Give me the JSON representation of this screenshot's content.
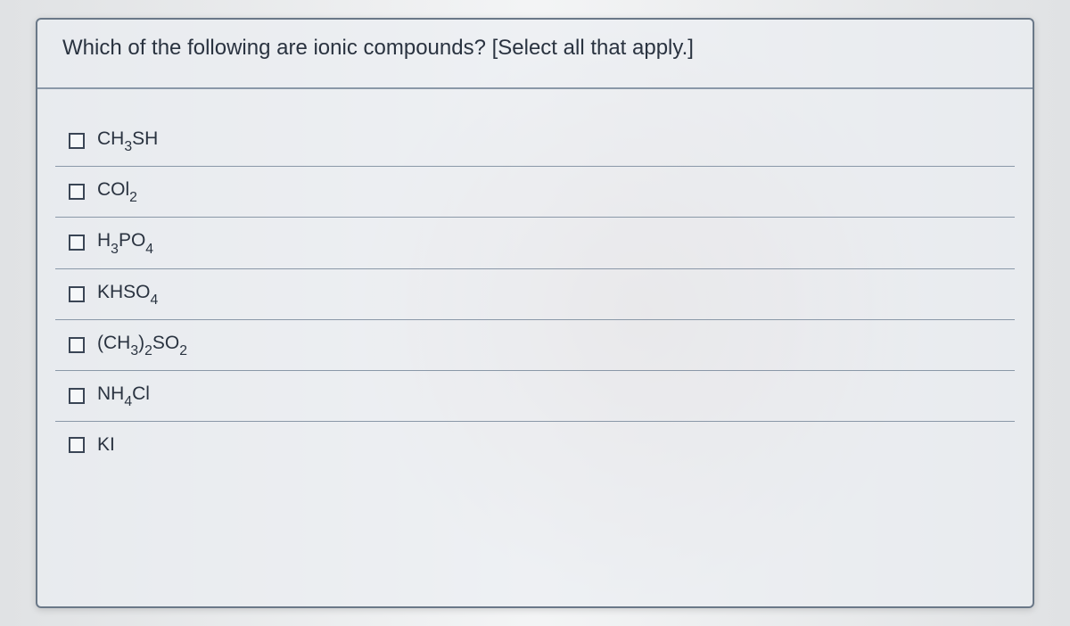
{
  "question": {
    "text": "Which of the following are ionic compounds? [Select all that apply.]"
  },
  "options": [
    {
      "formula_html": "CH<span class='sub'>3</span>SH",
      "checked": false
    },
    {
      "formula_html": "COl<span class='sub'>2</span>",
      "checked": false
    },
    {
      "formula_html": "H<span class='sub'>3</span>PO<span class='sub'>4</span>",
      "checked": false
    },
    {
      "formula_html": "KHSO<span class='sub'>4</span>",
      "checked": false
    },
    {
      "formula_html": "(CH<span class='sub'>3</span>)<span class='sub'>2</span>SO<span class='sub'>2</span>",
      "checked": false
    },
    {
      "formula_html": "NH<span class='sub'>4</span>Cl",
      "checked": false
    },
    {
      "formula_html": "KI",
      "checked": false
    }
  ],
  "colors": {
    "question_text": "#2a3340",
    "border": "#6a7888",
    "row_border": "#8a98a8",
    "checkbox_border": "#3a4555",
    "background": "#ebeef2"
  }
}
